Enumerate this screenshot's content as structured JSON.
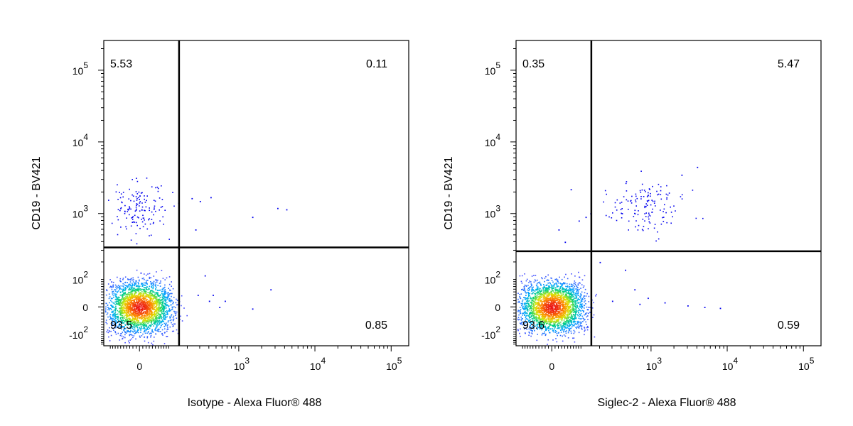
{
  "chart_data": [
    {
      "type": "scatter",
      "subtype": "flow-cytometry-quadrant-density",
      "xlabel": "Isotype - Alexa Fluor® 488",
      "ylabel": "CD19 - BV421",
      "scale": "biexponential",
      "x_ticks": [
        {
          "value": 0,
          "base": "0",
          "exp": ""
        },
        {
          "value": 1000,
          "base": "10",
          "exp": "3"
        },
        {
          "value": 10000,
          "base": "10",
          "exp": "4"
        },
        {
          "value": 100000,
          "base": "10",
          "exp": "5"
        }
      ],
      "y_ticks": [
        {
          "value": -100,
          "base": "-10",
          "exp": "2"
        },
        {
          "value": 0,
          "base": "0",
          "exp": ""
        },
        {
          "value": 100,
          "base": "10",
          "exp": "2"
        },
        {
          "value": 1000,
          "base": "10",
          "exp": "3"
        },
        {
          "value": 10000,
          "base": "10",
          "exp": "4"
        },
        {
          "value": 100000,
          "base": "10",
          "exp": "5"
        }
      ],
      "gate": {
        "x": 150,
        "y": 330
      },
      "quadrants": {
        "upper_left": "5.53",
        "upper_right": "0.11",
        "lower_left": "93.5",
        "lower_right": "0.85"
      },
      "populations": [
        {
          "name": "",
          "x_center": 0,
          "x_spread": 55,
          "y_center": 0,
          "y_spread": 45,
          "share": 0.935
        },
        {
          "name": "",
          "x_center": 0,
          "x_spread": 45,
          "y_center": 1200,
          "y_spread": 0.18,
          "share": 0.055
        }
      ],
      "outliers": [
        {
          "x": 300,
          "y": 1500
        },
        {
          "x": 420,
          "y": 1700
        },
        {
          "x": 1500,
          "y": 900
        },
        {
          "x": 3200,
          "y": 1200
        },
        {
          "x": 4200,
          "y": 1150
        },
        {
          "x": 230,
          "y": 1650
        },
        {
          "x": 260,
          "y": 600
        },
        {
          "x": 350,
          "y": 120
        },
        {
          "x": 450,
          "y": 40
        },
        {
          "x": 650,
          "y": 20
        },
        {
          "x": 1500,
          "y": -5
        },
        {
          "x": 2600,
          "y": 60
        },
        {
          "x": 400,
          "y": 20
        },
        {
          "x": 280,
          "y": 40
        },
        {
          "x": 550,
          "y": 0
        }
      ]
    },
    {
      "type": "scatter",
      "subtype": "flow-cytometry-quadrant-density",
      "xlabel": "Siglec-2 - Alexa Fluor® 488",
      "ylabel": "CD19 - BV421",
      "scale": "biexponential",
      "x_ticks": [
        {
          "value": 0,
          "base": "0",
          "exp": ""
        },
        {
          "value": 1000,
          "base": "10",
          "exp": "3"
        },
        {
          "value": 10000,
          "base": "10",
          "exp": "4"
        },
        {
          "value": 100000,
          "base": "10",
          "exp": "5"
        }
      ],
      "y_ticks": [
        {
          "value": -100,
          "base": "-10",
          "exp": "2"
        },
        {
          "value": 0,
          "base": "0",
          "exp": ""
        },
        {
          "value": 100,
          "base": "10",
          "exp": "2"
        },
        {
          "value": 1000,
          "base": "10",
          "exp": "3"
        },
        {
          "value": 10000,
          "base": "10",
          "exp": "4"
        },
        {
          "value": 100000,
          "base": "10",
          "exp": "5"
        }
      ],
      "gate": {
        "x": 150,
        "y": 290
      },
      "quadrants": {
        "upper_left": "0.35",
        "upper_right": "5.47",
        "lower_left": "93.6",
        "lower_right": "0.59"
      },
      "populations": [
        {
          "name": "",
          "x_center": 0,
          "x_spread": 55,
          "y_center": 0,
          "y_spread": 45,
          "share": 0.936
        },
        {
          "name": "",
          "x_center": 900,
          "x_spread": 0.28,
          "y_center": 1250,
          "y_spread": 0.17,
          "share": 0.055
        }
      ],
      "outliers": [
        {
          "x": 60,
          "y": 2200
        },
        {
          "x": 90,
          "y": 800
        },
        {
          "x": 40,
          "y": 400
        },
        {
          "x": 120,
          "y": 900
        },
        {
          "x": 20,
          "y": 600
        },
        {
          "x": 80,
          "y": 300
        },
        {
          "x": 300,
          "y": 20
        },
        {
          "x": 600,
          "y": 60
        },
        {
          "x": 900,
          "y": 30
        },
        {
          "x": 1500,
          "y": 15
        },
        {
          "x": 3000,
          "y": 5
        },
        {
          "x": 5000,
          "y": 0
        },
        {
          "x": 8000,
          "y": -3
        },
        {
          "x": 450,
          "y": 150
        },
        {
          "x": 700,
          "y": 10
        },
        {
          "x": 4000,
          "y": 4500
        },
        {
          "x": 2500,
          "y": 3500
        },
        {
          "x": 200,
          "y": 200
        }
      ]
    }
  ]
}
